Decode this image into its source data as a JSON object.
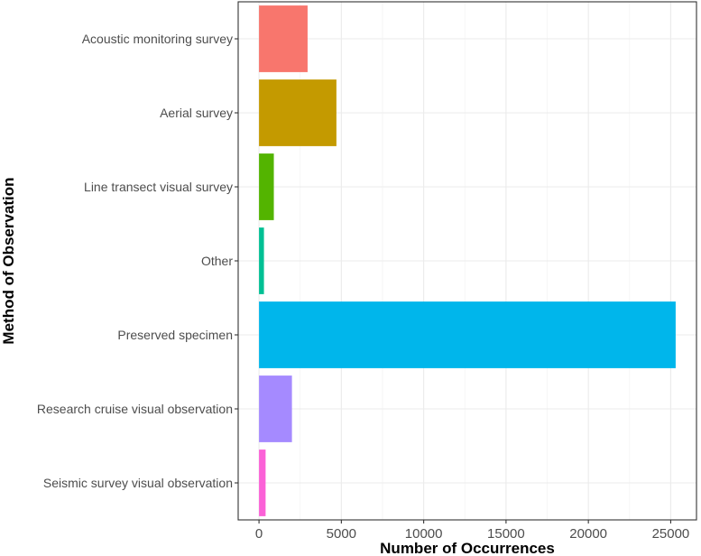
{
  "chart_data": {
    "type": "bar",
    "orientation": "horizontal",
    "title": "",
    "xlabel": "Number of Occurrences",
    "ylabel": "Method of Observation",
    "categories": [
      "Acoustic monitoring survey",
      "Aerial survey",
      "Line transect visual survey",
      "Other",
      "Preserved specimen",
      "Research cruise visual observation",
      "Seismic survey visual observation"
    ],
    "values": [
      2950,
      4700,
      900,
      300,
      25300,
      2000,
      400
    ],
    "colors": [
      "#F8766D",
      "#C49A00",
      "#53B400",
      "#00C094",
      "#00B6EB",
      "#A58AFF",
      "#FB61D7"
    ],
    "xlim": [
      -1265,
      26565
    ],
    "xticks": [
      0,
      5000,
      10000,
      15000,
      20000,
      25000
    ],
    "xtick_labels": [
      "0",
      "5000",
      "10000",
      "15000",
      "20000",
      "25000"
    ],
    "grid": true,
    "legend": "none"
  }
}
